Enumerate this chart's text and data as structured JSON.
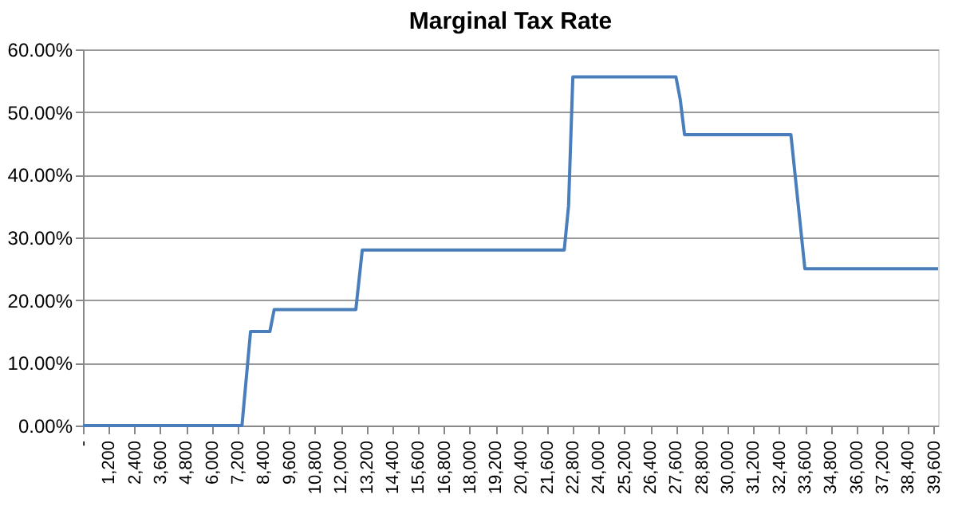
{
  "chart_data": {
    "type": "line",
    "title": "Marginal Tax Rate",
    "x": [
      0,
      7400,
      7800,
      8700,
      8900,
      12700,
      13000,
      22400,
      22600,
      22800,
      27600,
      27800,
      28000,
      32950,
      33600,
      39800
    ],
    "series": [
      {
        "color": "#4a7ebb",
        "values": [
          0,
          0,
          15,
          15,
          18.5,
          18.5,
          28,
          28,
          35,
          55.6,
          55.6,
          52,
          46.4,
          46.4,
          25,
          25
        ]
      }
    ],
    "xlim": [
      0,
      39800
    ],
    "xticks": [
      {
        "value": 0,
        "label": "-"
      },
      {
        "value": 1200,
        "label": "1,200"
      },
      {
        "value": 2400,
        "label": "2,400"
      },
      {
        "value": 3600,
        "label": "3,600"
      },
      {
        "value": 4800,
        "label": "4,800"
      },
      {
        "value": 6000,
        "label": "6,000"
      },
      {
        "value": 7200,
        "label": "7,200"
      },
      {
        "value": 8400,
        "label": "8,400"
      },
      {
        "value": 9600,
        "label": "9,600"
      },
      {
        "value": 10800,
        "label": "10,800"
      },
      {
        "value": 12000,
        "label": "12,000"
      },
      {
        "value": 13200,
        "label": "13,200"
      },
      {
        "value": 14400,
        "label": "14,400"
      },
      {
        "value": 15600,
        "label": "15,600"
      },
      {
        "value": 16800,
        "label": "16,800"
      },
      {
        "value": 18000,
        "label": "18,000"
      },
      {
        "value": 19200,
        "label": "19,200"
      },
      {
        "value": 20400,
        "label": "20,400"
      },
      {
        "value": 21600,
        "label": "21,600"
      },
      {
        "value": 22800,
        "label": "22,800"
      },
      {
        "value": 24000,
        "label": "24,000"
      },
      {
        "value": 25200,
        "label": "25,200"
      },
      {
        "value": 26400,
        "label": "26,400"
      },
      {
        "value": 27600,
        "label": "27,600"
      },
      {
        "value": 28800,
        "label": "28,800"
      },
      {
        "value": 30000,
        "label": "30,000"
      },
      {
        "value": 31200,
        "label": "31,200"
      },
      {
        "value": 32400,
        "label": "32,400"
      },
      {
        "value": 33600,
        "label": "33,600"
      },
      {
        "value": 34800,
        "label": "34,800"
      },
      {
        "value": 36000,
        "label": "36,000"
      },
      {
        "value": 37200,
        "label": "37,200"
      },
      {
        "value": 38400,
        "label": "38,400"
      },
      {
        "value": 39600,
        "label": "39,600"
      }
    ],
    "ylim": [
      0,
      60
    ],
    "yticks": [
      {
        "value": 0,
        "label": "0.00%"
      },
      {
        "value": 10,
        "label": "10.00%"
      },
      {
        "value": 20,
        "label": "20.00%"
      },
      {
        "value": 30,
        "label": "30.00%"
      },
      {
        "value": 40,
        "label": "40.00%"
      },
      {
        "value": 50,
        "label": "50.00%"
      },
      {
        "value": 60,
        "label": "60.00%"
      }
    ],
    "grid": "y",
    "legend": false,
    "marker": "none",
    "line_style": "solid"
  }
}
